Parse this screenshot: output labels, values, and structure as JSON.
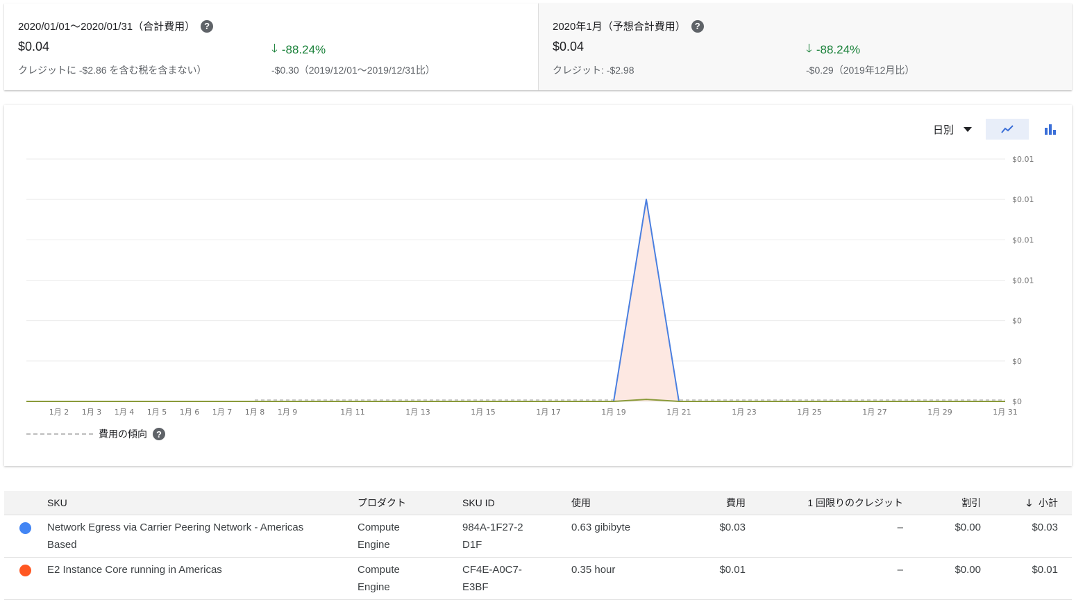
{
  "summary": {
    "total": {
      "title": "2020/01/01〜2020/01/31（合計費用）",
      "amount": "$0.04",
      "note": "クレジットに -$2.86 を含む税を含まない）",
      "delta": "-88.24%",
      "delta_note": "-$0.30（2019/12/01〜2019/12/31比）"
    },
    "forecast": {
      "title": "2020年1月（予想合計費用）",
      "amount": "$0.04",
      "note": "クレジット: -$2.98",
      "delta": "-88.24%",
      "delta_note": "-$0.29（2019年12月比）"
    }
  },
  "toolbar": {
    "period": "日別",
    "active_view": "line"
  },
  "legend": {
    "trend": "費用の傾向"
  },
  "chart_data": {
    "type": "area",
    "x": [
      "1月1",
      "1月2",
      "1月3",
      "1月4",
      "1月5",
      "1月6",
      "1月7",
      "1月8",
      "1月9",
      "1月10",
      "1月11",
      "1月12",
      "1月13",
      "1月14",
      "1月15",
      "1月16",
      "1月17",
      "1月18",
      "1月19",
      "1月20",
      "1月21",
      "1月22",
      "1月23",
      "1月24",
      "1月25",
      "1月26",
      "1月27",
      "1月28",
      "1月29",
      "1月30",
      "1月31"
    ],
    "x_tick_labels": [
      "1月 2",
      "1月 3",
      "1月 4",
      "1月 5",
      "1月 6",
      "1月 7",
      "1月 8",
      "1月 9",
      "1月 11",
      "1月 13",
      "1月 15",
      "1月 17",
      "1月 19",
      "1月 21",
      "1月 23",
      "1月 25",
      "1月 27",
      "1月 29",
      "1月 31"
    ],
    "x_tick_days": [
      2,
      3,
      4,
      5,
      6,
      7,
      8,
      9,
      11,
      13,
      15,
      17,
      19,
      21,
      23,
      25,
      27,
      29,
      31
    ],
    "y_ticks": [
      0,
      0.002,
      0.004,
      0.006,
      0.008,
      0.01,
      0.012
    ],
    "y_tick_labels": [
      "$0",
      "$0",
      "$0",
      "$0.01",
      "$0.01",
      "$0.01",
      "$0.01"
    ],
    "ylim": [
      0,
      0.012
    ],
    "grid": true,
    "series": [
      {
        "color": "#4a7fe0",
        "fill": "#fde8e2",
        "values": [
          0,
          0,
          0,
          0,
          0,
          0,
          0,
          0,
          0,
          0,
          0,
          0,
          0,
          0,
          0,
          0,
          0,
          0,
          0,
          0.01,
          0,
          0,
          0,
          0,
          0,
          0,
          0,
          0,
          0,
          0,
          0
        ]
      },
      {
        "color": "#8a9a3a",
        "values": [
          0,
          0,
          0,
          0,
          0,
          0,
          0,
          0,
          0,
          0,
          0,
          0,
          0,
          0,
          0,
          0,
          0,
          0,
          0,
          0.0001,
          0,
          0,
          0,
          0,
          0,
          0,
          0,
          0,
          0,
          0,
          0
        ]
      }
    ],
    "trend": {
      "color": "#bdbdbd",
      "start_day": 8,
      "end_day": 31,
      "value": 0
    }
  },
  "table": {
    "headers": {
      "sku": "SKU",
      "product": "プロダクト",
      "sku_id": "SKU ID",
      "usage": "使用",
      "cost": "費用",
      "credits": "1 回限りのクレジット",
      "discount": "割引",
      "subtotal": "小計"
    },
    "rows": [
      {
        "color": "#4285f4",
        "sku": "Network Egress via Carrier Peering Network - Americas Based",
        "product": "Compute Engine",
        "sku_id": "984A-1F27-2D1F",
        "usage": "0.63 gibibyte",
        "cost": "$0.03",
        "credits": "–",
        "discount": "$0.00",
        "subtotal": "$0.03"
      },
      {
        "color": "#ff5722",
        "sku": "E2 Instance Core running in Americas",
        "product": "Compute Engine",
        "sku_id": "CF4E-A0C7-E3BF",
        "usage": "0.35 hour",
        "cost": "$0.01",
        "credits": "–",
        "discount": "$0.00",
        "subtotal": "$0.01"
      }
    ]
  }
}
